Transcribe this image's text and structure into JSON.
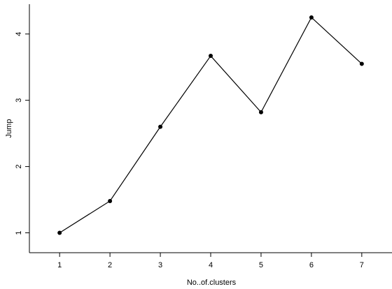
{
  "chart_data": {
    "type": "line",
    "title": "",
    "xlabel": "No..of.clusters",
    "ylabel": "Jump",
    "x": [
      1,
      2,
      3,
      4,
      5,
      6,
      7
    ],
    "series": [
      {
        "values": [
          1.0,
          1.48,
          2.6,
          3.67,
          2.82,
          4.25,
          3.55
        ]
      }
    ],
    "xticks": [
      1,
      2,
      3,
      4,
      5,
      6,
      7
    ],
    "yticks": [
      1,
      2,
      3,
      4
    ],
    "xlim": [
      0.4,
      7.6
    ],
    "ylim": [
      0.7,
      4.45
    ],
    "grid": false,
    "markers": "filled-circle",
    "line_color": "#000000"
  }
}
